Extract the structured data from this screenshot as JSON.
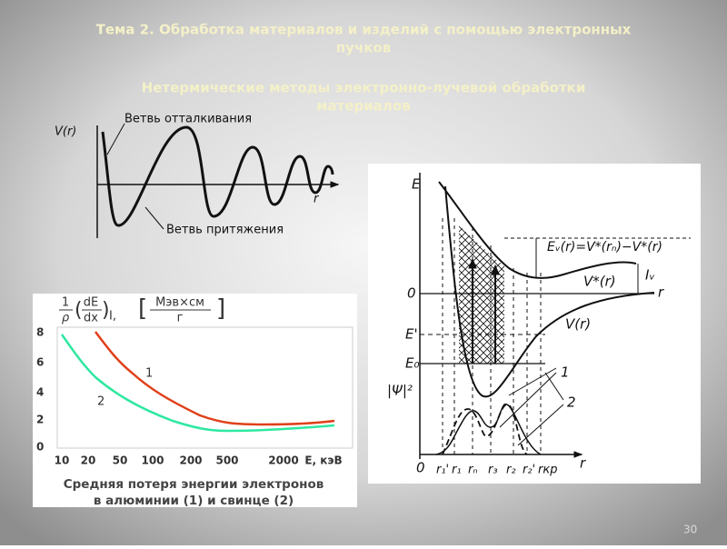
{
  "slide": {
    "title_line1": "Тема 2. Обработка материалов и изделий с помощью электронных",
    "title_line2": "пучков",
    "subtitle_line1": "Нетермические методы электронно-лучевой обработки",
    "subtitle_line2": "материалов",
    "page_number": "30"
  },
  "figure_potential": {
    "y_label": "V(r)",
    "x_label": "r",
    "repulsion": "Ветвь отталкивания",
    "attraction": "Ветвь притяжения"
  },
  "figure_energy_loss": {
    "frac_num": "1",
    "frac_den": "ρ",
    "deriv_num": "dE",
    "deriv_den": "dx",
    "suffix": "I,",
    "units_num": "Мэв×см",
    "units_den": "г",
    "yticks": [
      "8",
      "6",
      "4",
      "2",
      "0"
    ],
    "xticks": [
      "10",
      "20",
      "50",
      "100",
      "200",
      "500",
      "2000",
      "E, кэВ"
    ],
    "curve1": "1",
    "curve2": "2",
    "caption_line1": "Средняя потеря энергии электронов",
    "caption_line2": "в алюминии (1) и свинце (2)"
  },
  "figure_levels": {
    "e_axis": "E",
    "zero": "0",
    "e_prime": "E'",
    "e_zero": "E₀",
    "psi": "|Ψ|²",
    "ev_formula": "Eᵥ(r)=V*(rₙ)−V*(r)",
    "v_star": "V*(r)",
    "iv": "Iᵥ",
    "r_right": "r",
    "v_r": "V(r)",
    "label1": "1",
    "label2": "2",
    "origin": "0",
    "r_ticks": [
      "r₁'",
      "r₁",
      "rₙ",
      "r₃",
      "r₂",
      "r₂'",
      "rкр"
    ],
    "r_axis": "r"
  }
}
